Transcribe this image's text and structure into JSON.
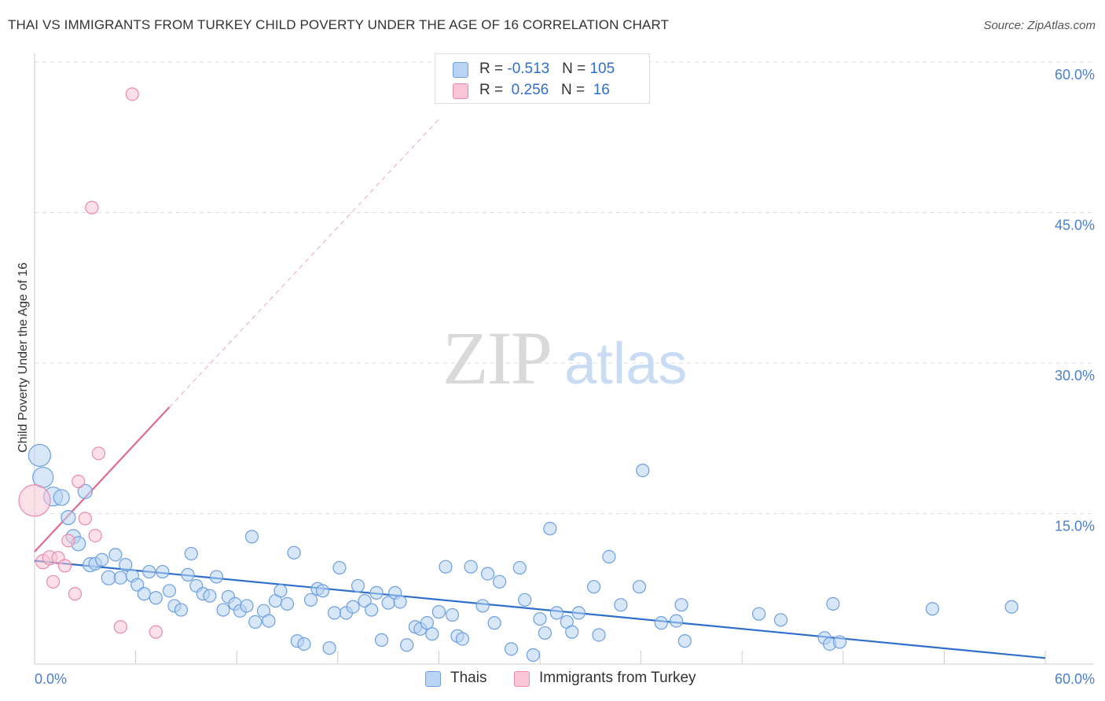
{
  "title": "THAI VS IMMIGRANTS FROM TURKEY CHILD POVERTY UNDER THE AGE OF 16 CORRELATION CHART",
  "source": "Source: ZipAtlas.com",
  "watermark": {
    "zip": "ZIP",
    "atlas": "atlas"
  },
  "colors": {
    "blue_fill": "#b8d3f3",
    "blue_stroke": "#6a9fe0",
    "blue_line": "#2f6fcc",
    "pink_fill": "#f8c6d6",
    "pink_stroke": "#e98aaa",
    "pink_line": "#e06a90",
    "grid": "#dddddd",
    "tick_text": "#4a7fcc"
  },
  "legend": {
    "rows": [
      {
        "r_label": "R = ",
        "r_value": "-0.513",
        "n_label": "N = ",
        "n_value": "105",
        "color": "#b8d3f3",
        "stroke": "#6a9fe0"
      },
      {
        "r_label": "R = ",
        "r_value": " 0.256",
        "n_label": "N = ",
        "n_value": " 16",
        "color": "#f8c6d6",
        "stroke": "#e98aaa"
      }
    ]
  },
  "chart_data": {
    "type": "scatter",
    "title": "THAI VS IMMIGRANTS FROM TURKEY CHILD POVERTY UNDER THE AGE OF 16 CORRELATION CHART",
    "xlabel": "",
    "ylabel": "Child Poverty Under the Age of 16",
    "xlim": [
      0,
      60
    ],
    "ylim": [
      0,
      60
    ],
    "x_tick_labels": [
      "0.0%",
      "60.0%"
    ],
    "y_ticks": [
      15,
      30,
      45,
      60
    ],
    "y_tick_labels": [
      "15.0%",
      "30.0%",
      "45.0%",
      "60.0%"
    ],
    "grid": true,
    "legend_position": "top-center",
    "series": [
      {
        "name": "Thais",
        "color": "#b8d3f3",
        "stroke": "#6a9fe0",
        "trend": {
          "x": [
            0,
            60
          ],
          "y": [
            10.3,
            0.6
          ]
        },
        "points": [
          [
            0.3,
            20.8,
            14
          ],
          [
            0.5,
            18.6,
            13
          ],
          [
            1.1,
            16.7,
            12
          ],
          [
            1.6,
            16.6,
            10
          ],
          [
            2.0,
            14.6,
            9
          ],
          [
            2.3,
            12.7,
            9
          ],
          [
            2.6,
            12.0,
            9
          ],
          [
            3.0,
            17.2,
            9
          ],
          [
            3.3,
            9.9,
            9
          ],
          [
            3.6,
            10.0,
            8
          ],
          [
            4.0,
            10.4,
            8
          ],
          [
            4.4,
            8.6,
            9
          ],
          [
            4.8,
            10.9,
            8
          ],
          [
            5.1,
            8.6,
            8
          ],
          [
            5.4,
            9.9,
            8
          ],
          [
            5.8,
            8.8,
            8
          ],
          [
            6.1,
            7.9,
            8
          ],
          [
            6.5,
            7.0,
            8
          ],
          [
            6.8,
            9.2,
            8
          ],
          [
            7.2,
            6.6,
            8
          ],
          [
            7.6,
            9.2,
            8
          ],
          [
            8.0,
            7.3,
            8
          ],
          [
            8.3,
            5.8,
            8
          ],
          [
            8.7,
            5.4,
            8
          ],
          [
            9.1,
            8.9,
            8
          ],
          [
            9.3,
            11.0,
            8
          ],
          [
            9.6,
            7.8,
            8
          ],
          [
            10.0,
            7.0,
            8
          ],
          [
            10.4,
            6.8,
            8
          ],
          [
            10.8,
            8.7,
            8
          ],
          [
            11.2,
            5.4,
            8
          ],
          [
            11.5,
            6.7,
            8
          ],
          [
            11.9,
            6.0,
            8
          ],
          [
            12.2,
            5.3,
            8
          ],
          [
            12.6,
            5.8,
            8
          ],
          [
            12.9,
            12.7,
            8
          ],
          [
            13.1,
            4.2,
            8
          ],
          [
            13.6,
            5.3,
            8
          ],
          [
            13.9,
            4.3,
            8
          ],
          [
            14.3,
            6.3,
            8
          ],
          [
            14.6,
            7.3,
            8
          ],
          [
            15.0,
            6.0,
            8
          ],
          [
            15.4,
            11.1,
            8
          ],
          [
            15.6,
            2.3,
            8
          ],
          [
            16.0,
            2.0,
            8
          ],
          [
            16.4,
            6.4,
            8
          ],
          [
            16.8,
            7.5,
            8
          ],
          [
            17.1,
            7.3,
            8
          ],
          [
            17.5,
            1.6,
            8
          ],
          [
            17.8,
            5.1,
            8
          ],
          [
            18.1,
            9.6,
            8
          ],
          [
            18.5,
            5.1,
            8
          ],
          [
            18.9,
            5.7,
            8
          ],
          [
            19.2,
            7.8,
            8
          ],
          [
            19.6,
            6.3,
            8
          ],
          [
            20.0,
            5.4,
            8
          ],
          [
            20.3,
            7.1,
            8
          ],
          [
            20.6,
            2.4,
            8
          ],
          [
            21.0,
            6.1,
            8
          ],
          [
            21.4,
            7.1,
            8
          ],
          [
            21.7,
            6.2,
            8
          ],
          [
            22.1,
            1.9,
            8
          ],
          [
            22.6,
            3.7,
            8
          ],
          [
            22.9,
            3.5,
            8
          ],
          [
            23.3,
            4.1,
            8
          ],
          [
            23.6,
            3.0,
            8
          ],
          [
            24.0,
            5.2,
            8
          ],
          [
            24.4,
            9.7,
            8
          ],
          [
            24.8,
            4.9,
            8
          ],
          [
            25.1,
            2.8,
            8
          ],
          [
            25.4,
            2.5,
            8
          ],
          [
            25.9,
            9.7,
            8
          ],
          [
            26.6,
            5.8,
            8
          ],
          [
            26.9,
            9.0,
            8
          ],
          [
            27.3,
            4.1,
            8
          ],
          [
            27.6,
            8.2,
            8
          ],
          [
            28.3,
            1.5,
            8
          ],
          [
            28.8,
            9.6,
            8
          ],
          [
            29.1,
            6.4,
            8
          ],
          [
            29.6,
            0.9,
            8
          ],
          [
            30.0,
            4.5,
            8
          ],
          [
            30.3,
            3.1,
            8
          ],
          [
            30.6,
            13.5,
            8
          ],
          [
            31.0,
            5.1,
            8
          ],
          [
            31.6,
            4.2,
            8
          ],
          [
            31.9,
            3.2,
            8
          ],
          [
            32.3,
            5.1,
            8
          ],
          [
            33.2,
            7.7,
            8
          ],
          [
            33.5,
            2.9,
            8
          ],
          [
            34.1,
            10.7,
            8
          ],
          [
            34.8,
            5.9,
            8
          ],
          [
            35.9,
            7.7,
            8
          ],
          [
            36.1,
            19.3,
            8
          ],
          [
            37.2,
            4.1,
            8
          ],
          [
            38.1,
            4.3,
            8
          ],
          [
            38.4,
            5.9,
            8
          ],
          [
            38.6,
            2.3,
            8
          ],
          [
            43.0,
            5.0,
            8
          ],
          [
            44.3,
            4.4,
            8
          ],
          [
            46.9,
            2.6,
            8
          ],
          [
            47.2,
            2.0,
            8
          ],
          [
            47.4,
            6.0,
            8
          ],
          [
            47.8,
            2.2,
            8
          ],
          [
            53.3,
            5.5,
            8
          ],
          [
            58.0,
            5.7,
            8
          ]
        ]
      },
      {
        "name": "Immigrants from Turkey",
        "color": "#f8c6d6",
        "stroke": "#e98aaa",
        "trend": {
          "x": [
            0,
            8
          ],
          "y": [
            11.2,
            25.6
          ]
        },
        "trend_extension": {
          "x": [
            8,
            24
          ],
          "y": [
            25.6,
            54.3
          ]
        },
        "points": [
          [
            0.0,
            16.3,
            20
          ],
          [
            0.5,
            10.2,
            9
          ],
          [
            0.9,
            10.6,
            9
          ],
          [
            1.1,
            8.2,
            8
          ],
          [
            1.4,
            10.6,
            8
          ],
          [
            1.8,
            9.8,
            8
          ],
          [
            2.0,
            12.3,
            8
          ],
          [
            2.4,
            7.0,
            8
          ],
          [
            2.6,
            18.2,
            8
          ],
          [
            3.0,
            14.5,
            8
          ],
          [
            3.4,
            45.5,
            8
          ],
          [
            3.6,
            12.8,
            8
          ],
          [
            3.8,
            21.0,
            8
          ],
          [
            5.1,
            3.7,
            8
          ],
          [
            5.8,
            56.8,
            8
          ],
          [
            7.2,
            3.2,
            8
          ]
        ]
      }
    ]
  }
}
